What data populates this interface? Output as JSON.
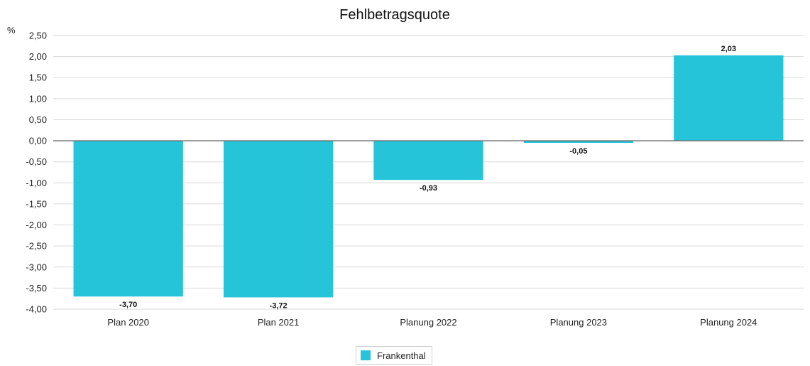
{
  "chart_data": {
    "type": "bar",
    "title": "Fehlbetragsquote",
    "ylabel": "%",
    "xlabel": "",
    "categories": [
      "Plan 2020",
      "Plan 2021",
      "Planung 2022",
      "Planung 2023",
      "Planung 2024"
    ],
    "series": [
      {
        "name": "Frankenthal",
        "values": [
          -3.7,
          -3.72,
          -0.93,
          -0.05,
          2.03
        ],
        "color": "#26c4d9"
      }
    ],
    "data_labels": [
      "-3,70",
      "-3,72",
      "-0,93",
      "-0,05",
      "2,03"
    ],
    "yticks": [
      "2,50",
      "2,00",
      "1,50",
      "1,00",
      "0,50",
      "0,00",
      "-0,50",
      "-1,00",
      "-1,50",
      "-2,00",
      "-2,50",
      "-3,00",
      "-3,50",
      "-4,00"
    ],
    "ylim": [
      -4.0,
      2.5
    ],
    "grid": true,
    "legend_position": "bottom-center"
  }
}
